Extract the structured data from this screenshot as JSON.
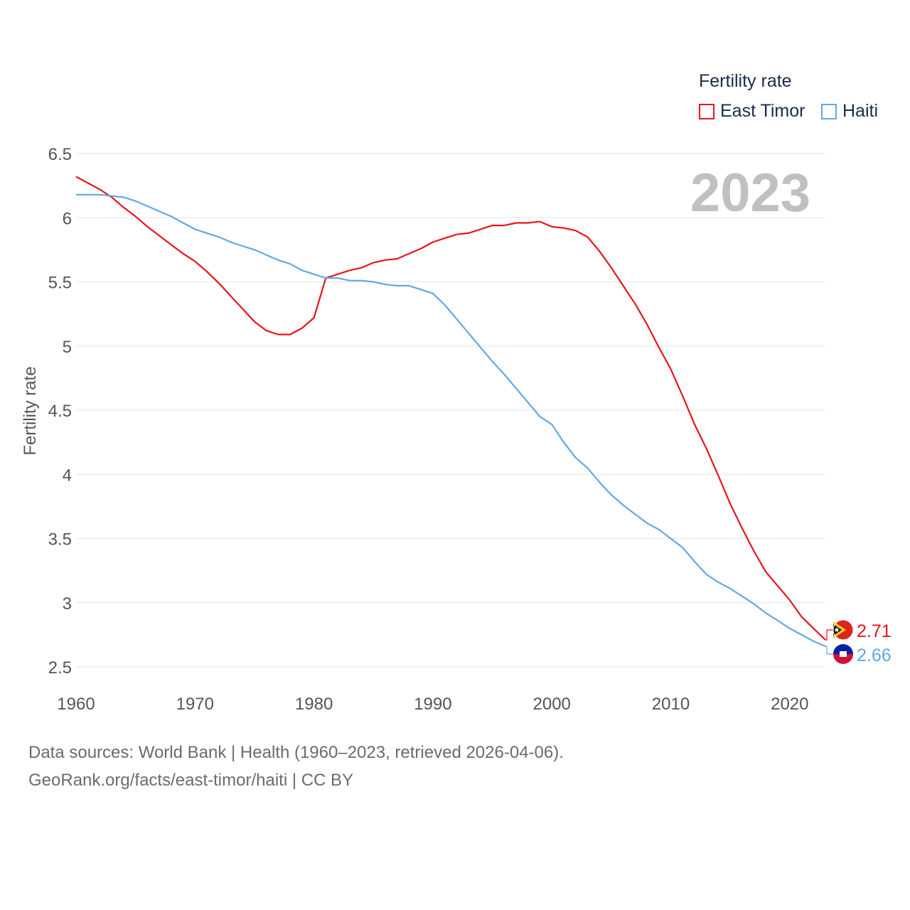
{
  "chart_data": {
    "type": "line",
    "title": "Fertility rate",
    "xlabel": "",
    "ylabel": "Fertility rate",
    "big_year": "2023",
    "x": [
      1960,
      1961,
      1962,
      1963,
      1964,
      1965,
      1966,
      1967,
      1968,
      1969,
      1970,
      1971,
      1972,
      1973,
      1974,
      1975,
      1976,
      1977,
      1978,
      1979,
      1980,
      1981,
      1982,
      1983,
      1984,
      1985,
      1986,
      1987,
      1988,
      1989,
      1990,
      1991,
      1992,
      1993,
      1994,
      1995,
      1996,
      1997,
      1998,
      1999,
      2000,
      2001,
      2002,
      2003,
      2004,
      2005,
      2006,
      2007,
      2008,
      2009,
      2010,
      2011,
      2012,
      2013,
      2014,
      2015,
      2016,
      2017,
      2018,
      2019,
      2020,
      2021,
      2022,
      2023
    ],
    "series": [
      {
        "name": "East Timor",
        "color": "#e8141c",
        "end_label": "2.71",
        "values": [
          6.32,
          6.27,
          6.22,
          6.16,
          6.08,
          6.01,
          5.93,
          5.86,
          5.79,
          5.72,
          5.66,
          5.58,
          5.49,
          5.39,
          5.29,
          5.19,
          5.12,
          5.09,
          5.09,
          5.14,
          5.22,
          5.53,
          5.56,
          5.59,
          5.61,
          5.65,
          5.67,
          5.68,
          5.72,
          5.76,
          5.81,
          5.84,
          5.87,
          5.88,
          5.91,
          5.94,
          5.94,
          5.96,
          5.96,
          5.97,
          5.93,
          5.92,
          5.9,
          5.85,
          5.74,
          5.61,
          5.47,
          5.33,
          5.17,
          4.99,
          4.82,
          4.61,
          4.39,
          4.2,
          3.99,
          3.77,
          3.58,
          3.4,
          3.24,
          3.13,
          3.02,
          2.89,
          2.8,
          2.71
        ]
      },
      {
        "name": "Haiti",
        "color": "#62a8e5",
        "end_label": "2.66",
        "values": [
          6.18,
          6.18,
          6.18,
          6.17,
          6.16,
          6.13,
          6.09,
          6.05,
          6.01,
          5.96,
          5.91,
          5.88,
          5.85,
          5.81,
          5.78,
          5.75,
          5.71,
          5.67,
          5.64,
          5.59,
          5.56,
          5.53,
          5.53,
          5.51,
          5.51,
          5.5,
          5.48,
          5.47,
          5.47,
          5.44,
          5.41,
          5.32,
          5.21,
          5.1,
          4.99,
          4.88,
          4.78,
          4.67,
          4.56,
          4.45,
          4.39,
          4.25,
          4.13,
          4.05,
          3.94,
          3.84,
          3.76,
          3.69,
          3.62,
          3.57,
          3.5,
          3.43,
          3.32,
          3.22,
          3.16,
          3.11,
          3.05,
          2.99,
          2.92,
          2.86,
          2.8,
          2.75,
          2.7,
          2.66
        ]
      }
    ],
    "xticks": [
      1960,
      1970,
      1980,
      1990,
      2000,
      2010,
      2020
    ],
    "yticks": [
      2.5,
      3,
      3.5,
      4,
      4.5,
      5,
      5.5,
      6,
      6.5
    ],
    "ylim": [
      2.5,
      6.5
    ],
    "xlim": [
      1960,
      2023
    ],
    "legend_title": "Fertility rate",
    "legend_position": "top-right",
    "grid": true
  },
  "footer": {
    "line1": "Data sources: World Bank | Health (1960–2023, retrieved 2026-04-06).",
    "line2": "GeoRank.org/facts/east-timor/haiti | CC BY"
  }
}
